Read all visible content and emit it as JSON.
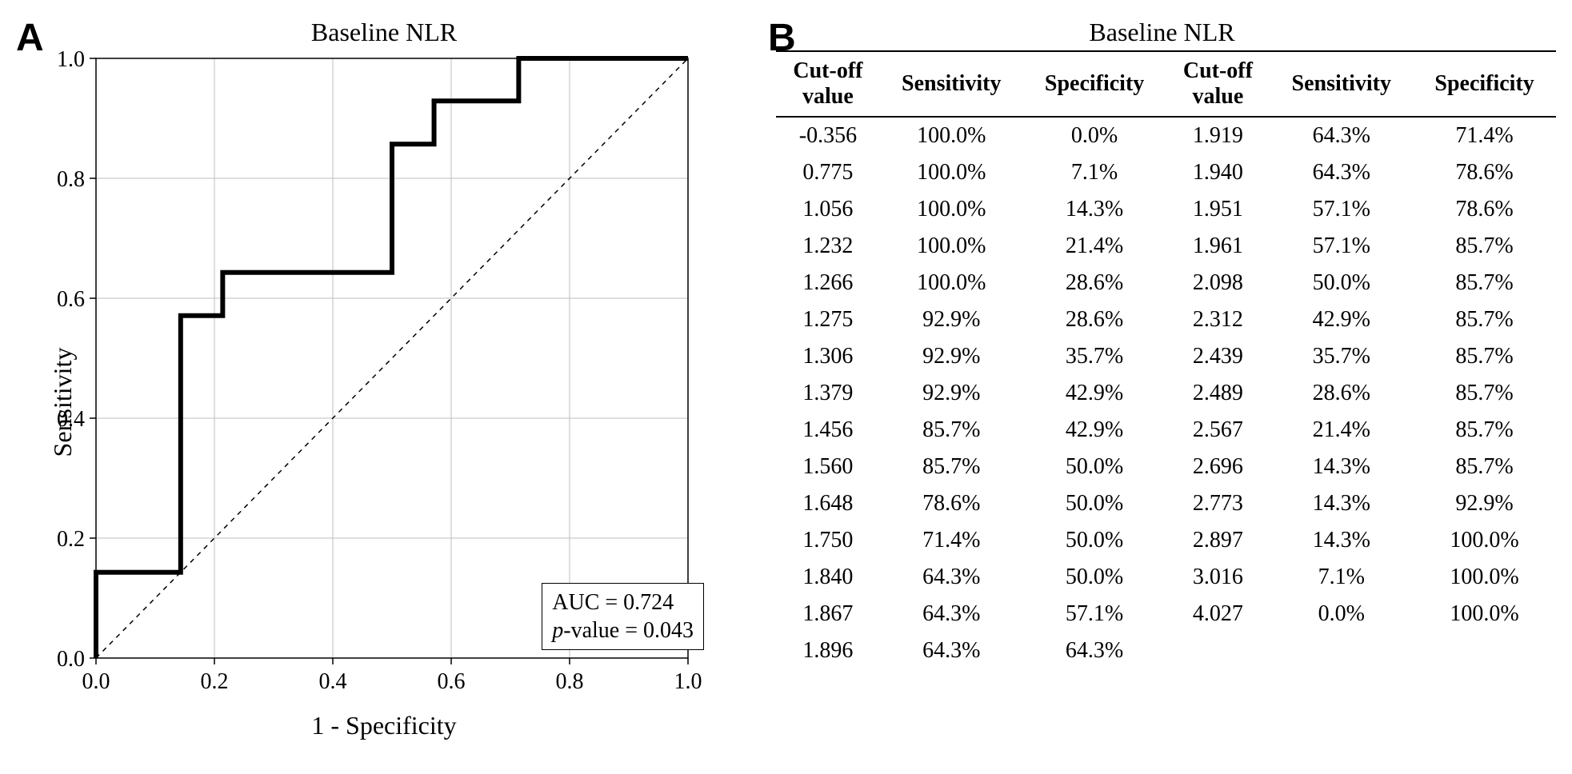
{
  "panelA": {
    "label": "A",
    "title": "Baseline NLR",
    "ylabel": "Sensitivity",
    "xlabel": "1 - Specificity",
    "annotation": {
      "auc_label": "AUC = 0.724",
      "p_prefix": "p",
      "p_rest": "-value = 0.043"
    },
    "chart": {
      "type": "roc",
      "xlim": [
        0.0,
        1.0
      ],
      "ylim": [
        0.0,
        1.0
      ],
      "xticks": [
        0.0,
        0.2,
        0.4,
        0.6,
        0.8,
        1.0
      ],
      "yticks": [
        0.0,
        0.2,
        0.4,
        0.6,
        0.8,
        1.0
      ],
      "axis_color": "#000000",
      "grid_color": "#bfbfbf",
      "grid_width": 1,
      "background_color": "#ffffff",
      "tick_fontsize": 28,
      "label_fontsize": 32,
      "title_fontsize": 32,
      "line_width": 6,
      "line_color": "#000000",
      "diagonal": {
        "color": "#000000",
        "dash": "6,6",
        "width": 1.5
      },
      "roc_points": [
        [
          0.0,
          0.0
        ],
        [
          0.0,
          0.143
        ],
        [
          0.143,
          0.143
        ],
        [
          0.143,
          0.571
        ],
        [
          0.214,
          0.571
        ],
        [
          0.214,
          0.643
        ],
        [
          0.5,
          0.643
        ],
        [
          0.5,
          0.857
        ],
        [
          0.571,
          0.857
        ],
        [
          0.571,
          0.929
        ],
        [
          0.714,
          0.929
        ],
        [
          0.714,
          1.0
        ],
        [
          1.0,
          1.0
        ]
      ]
    }
  },
  "panelB": {
    "label": "B",
    "title": "Baseline NLR",
    "columns": [
      "Cut-off\nvalue",
      "Sensitivity",
      "Specificity",
      "Cut-off\nvalue",
      "Sensitivity",
      "Specificity"
    ],
    "header_fontsize": 28,
    "cell_fontsize": 28,
    "rows": [
      [
        "-0.356",
        "100.0%",
        "0.0%",
        "1.919",
        "64.3%",
        "71.4%"
      ],
      [
        "0.775",
        "100.0%",
        "7.1%",
        "1.940",
        "64.3%",
        "78.6%"
      ],
      [
        "1.056",
        "100.0%",
        "14.3%",
        "1.951",
        "57.1%",
        "78.6%"
      ],
      [
        "1.232",
        "100.0%",
        "21.4%",
        "1.961",
        "57.1%",
        "85.7%"
      ],
      [
        "1.266",
        "100.0%",
        "28.6%",
        "2.098",
        "50.0%",
        "85.7%"
      ],
      [
        "1.275",
        "92.9%",
        "28.6%",
        "2.312",
        "42.9%",
        "85.7%"
      ],
      [
        "1.306",
        "92.9%",
        "35.7%",
        "2.439",
        "35.7%",
        "85.7%"
      ],
      [
        "1.379",
        "92.9%",
        "42.9%",
        "2.489",
        "28.6%",
        "85.7%"
      ],
      [
        "1.456",
        "85.7%",
        "42.9%",
        "2.567",
        "21.4%",
        "85.7%"
      ],
      [
        "1.560",
        "85.7%",
        "50.0%",
        "2.696",
        "14.3%",
        "85.7%"
      ],
      [
        "1.648",
        "78.6%",
        "50.0%",
        "2.773",
        "14.3%",
        "92.9%"
      ],
      [
        "1.750",
        "71.4%",
        "50.0%",
        "2.897",
        "14.3%",
        "100.0%"
      ],
      [
        "1.840",
        "64.3%",
        "50.0%",
        "3.016",
        "7.1%",
        "100.0%"
      ],
      [
        "1.867",
        "64.3%",
        "57.1%",
        "4.027",
        "0.0%",
        "100.0%"
      ],
      [
        "1.896",
        "64.3%",
        "64.3%",
        "",
        "",
        ""
      ]
    ]
  }
}
